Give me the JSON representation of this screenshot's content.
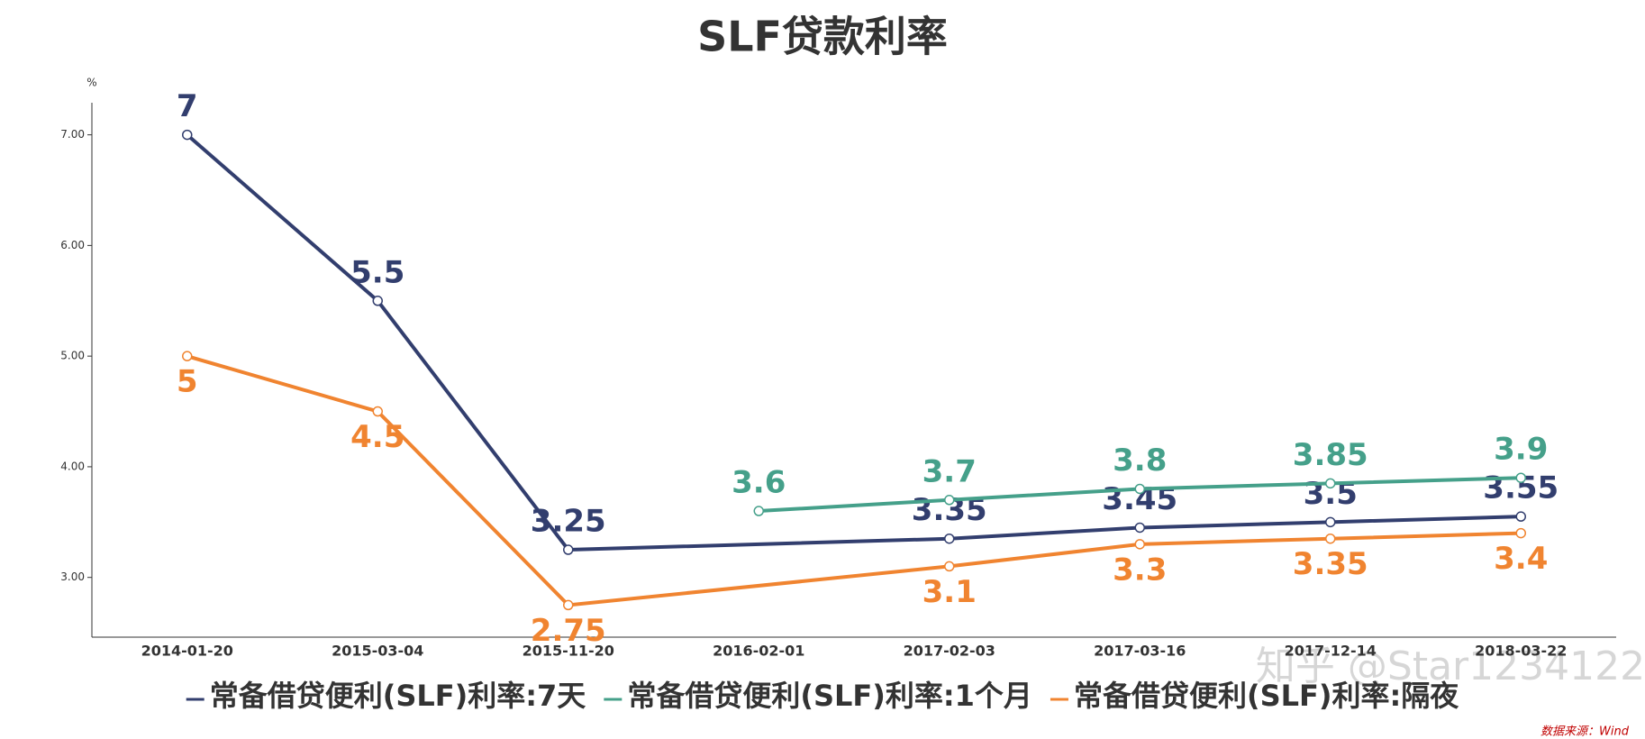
{
  "chart_data": {
    "type": "line",
    "title": "SLF贷款利率",
    "y_unit": "%",
    "categories": [
      "2014-01-20",
      "2015-03-04",
      "2015-11-20",
      "2016-02-01",
      "2017-02-03",
      "2017-03-16",
      "2017-12-14",
      "2018-03-22"
    ],
    "series": [
      {
        "name": "常备借贷便利(SLF)利率:7天",
        "color": "#323e6e",
        "label_position": "above",
        "values": [
          7,
          5.5,
          3.25,
          null,
          3.35,
          3.45,
          3.5,
          3.55
        ]
      },
      {
        "name": "常备借贷便利(SLF)利率:1个月",
        "color": "#45a08a",
        "label_position": "above",
        "values": [
          null,
          null,
          null,
          3.6,
          3.7,
          3.8,
          3.85,
          3.9
        ]
      },
      {
        "name": "常备借贷便利(SLF)利率:隔夜",
        "color": "#f08430",
        "label_position": "below",
        "values": [
          5,
          4.5,
          2.75,
          null,
          3.1,
          3.3,
          3.35,
          3.4
        ]
      }
    ],
    "connect_nulls": true,
    "ylim": [
      2.46,
      7.29
    ],
    "yticks": [
      {
        "value": 3,
        "label": "3.00"
      },
      {
        "value": 4,
        "label": "4.00"
      },
      {
        "value": 5,
        "label": "5.00"
      },
      {
        "value": 6,
        "label": "6.00"
      },
      {
        "value": 7,
        "label": "7.00"
      }
    ],
    "grid": false,
    "legend": "bottom",
    "source": "数据来源：Wind",
    "watermark": "知乎 @Star1234122"
  }
}
